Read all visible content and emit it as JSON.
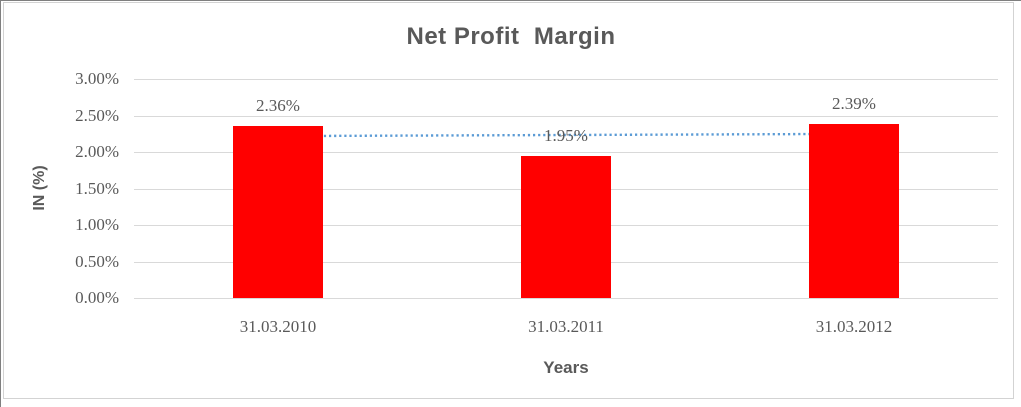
{
  "chart_data": {
    "type": "bar",
    "title": "Net Profit  Margin",
    "categories": [
      "31.03.2010",
      "31.03.2011",
      "31.03.2012"
    ],
    "values": [
      2.36,
      1.95,
      2.39
    ],
    "data_labels": [
      "2.36%",
      "1.95%",
      "2.39%"
    ],
    "xlabel": "Years",
    "ylabel": "IN (%)",
    "ylim": [
      0,
      3
    ],
    "yticks": [
      0,
      0.5,
      1,
      1.5,
      2,
      2.5,
      3
    ],
    "ytick_labels": [
      "0.00%",
      "0.50%",
      "1.00%",
      "1.50%",
      "2.00%",
      "2.50%",
      "3.00%"
    ],
    "grid": true,
    "legend": "none",
    "colors": {
      "bar": "#FF0000",
      "text": "#595959",
      "gridline": "#D9D9D9",
      "trendline": "#5B9BD5",
      "frame_border": "#D3D3D3"
    },
    "trendline": {
      "type": "linear",
      "line_style": "dotted",
      "y_start": 2.218,
      "y_end": 2.248
    }
  }
}
